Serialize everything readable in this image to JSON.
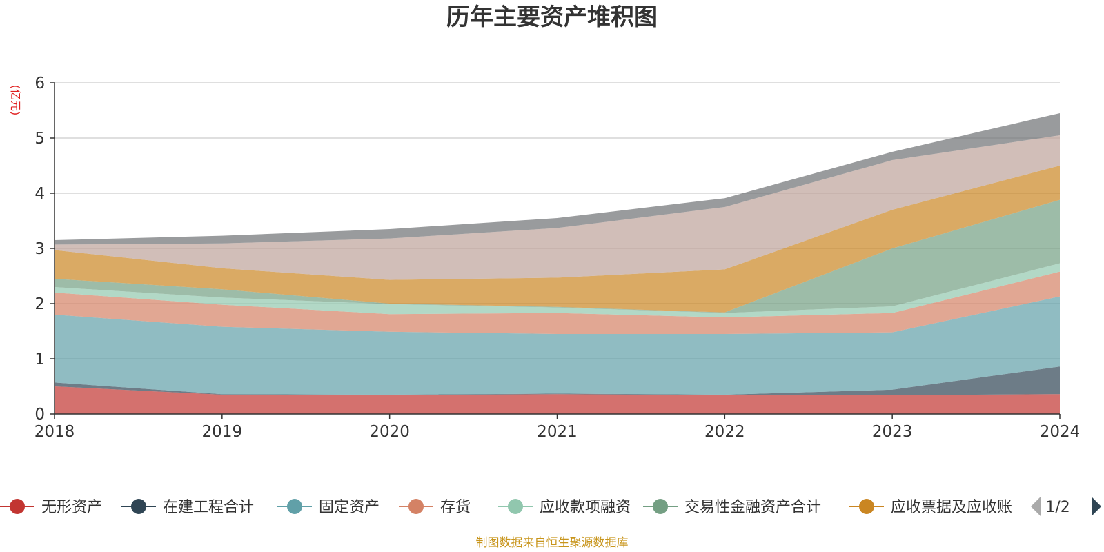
{
  "title": "历年主要资产堆积图",
  "source_note": "制图数据来自恒生聚源数据库",
  "legend_page": "1/2",
  "colors": {
    "无形资产": "#c23531",
    "在建工程合计": "#2f4554",
    "固定资产": "#61a0a8",
    "存货": "#d48265",
    "应收款项融资": "#91c7ae",
    "交易性金融资产合计": "#749f83",
    "应收票据及应收账": "#ca8622",
    "其他资产1": "#bda29a",
    "其他资产2": "#6e7074"
  },
  "chart_data": {
    "type": "area",
    "stacked": true,
    "unit_label": "(亿元)",
    "x": [
      "2018",
      "2019",
      "2020",
      "2021",
      "2022",
      "2023",
      "2024"
    ],
    "ylim": [
      0,
      6
    ],
    "yticks": [
      "0",
      "1",
      "2",
      "3",
      "4",
      "5",
      "6"
    ],
    "grid": true,
    "legend_position": "bottom",
    "series": [
      {
        "name": "无形资产",
        "values": [
          0.5,
          0.35,
          0.34,
          0.36,
          0.34,
          0.34,
          0.36
        ]
      },
      {
        "name": "在建工程合计",
        "values": [
          0.07,
          0.01,
          0.01,
          0.01,
          0.01,
          0.1,
          0.5
        ]
      },
      {
        "name": "固定资产",
        "values": [
          1.23,
          1.22,
          1.14,
          1.08,
          1.1,
          1.04,
          1.27
        ]
      },
      {
        "name": "存货",
        "values": [
          0.4,
          0.4,
          0.32,
          0.38,
          0.3,
          0.35,
          0.45
        ]
      },
      {
        "name": "应收款项融资",
        "values": [
          0.1,
          0.13,
          0.18,
          0.1,
          0.08,
          0.12,
          0.15
        ]
      },
      {
        "name": "交易性金融资产合计",
        "values": [
          0.15,
          0.15,
          0.01,
          0.01,
          0.01,
          1.05,
          1.15
        ]
      },
      {
        "name": "应收票据及应收账",
        "values": [
          0.52,
          0.38,
          0.43,
          0.53,
          0.78,
          0.7,
          0.62
        ]
      },
      {
        "name": "",
        "values": [
          0.1,
          0.45,
          0.75,
          0.9,
          1.13,
          0.9,
          0.55
        ]
      },
      {
        "name": "",
        "values": [
          0.08,
          0.14,
          0.17,
          0.18,
          0.16,
          0.15,
          0.4
        ]
      }
    ]
  }
}
